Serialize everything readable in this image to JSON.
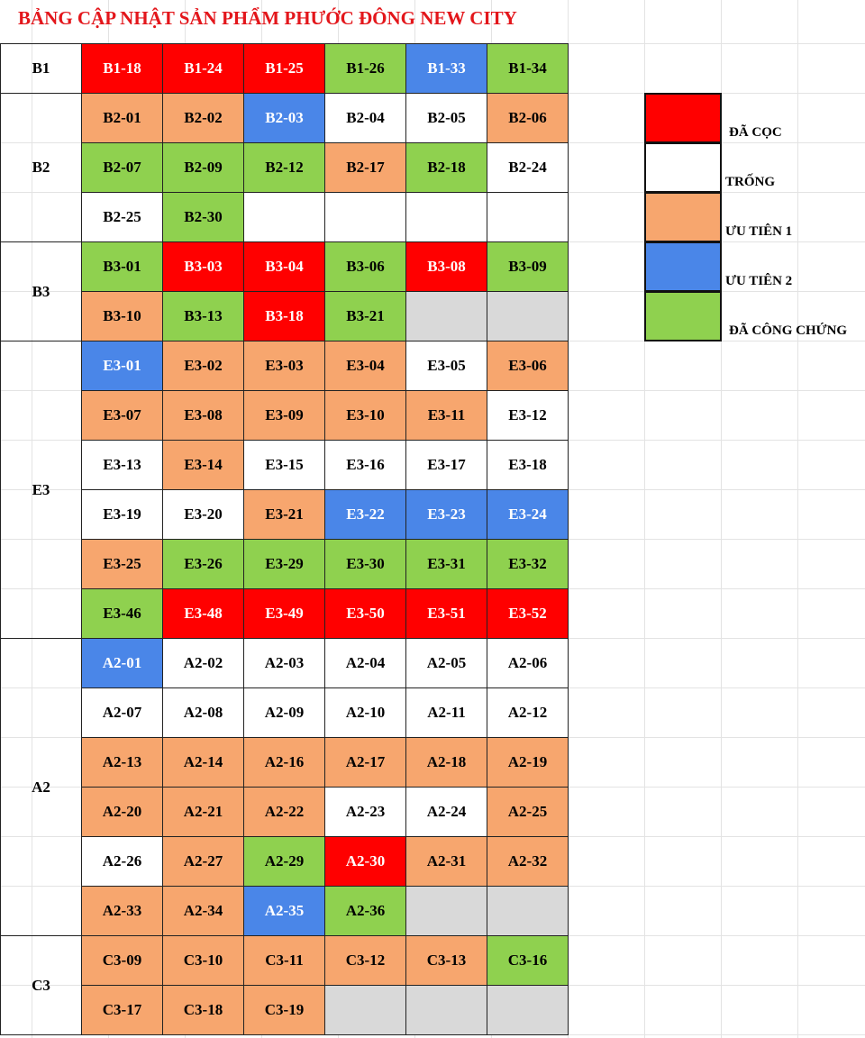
{
  "title": "BẢNG CẬP NHẬT SẢN PHẨM PHƯỚC ĐÔNG NEW CITY",
  "legend": [
    {
      "label": "ĐÃ CỌC",
      "color": "#ff0000"
    },
    {
      "label": "TRỐNG",
      "color": "#ffffff"
    },
    {
      "label": "ƯU TIÊN 1",
      "color": "#f7a66e"
    },
    {
      "label": "ƯU TIÊN 2",
      "color": "#4a86e8"
    },
    {
      "label": "ĐÃ CÔNG CHỨNG",
      "color": "#8fd14f"
    }
  ],
  "groups": [
    {
      "name": "B1",
      "rows": [
        [
          {
            "label": "B1-18",
            "color": "#ff0000"
          },
          {
            "label": "B1-24",
            "color": "#ff0000"
          },
          {
            "label": "B1-25",
            "color": "#ff0000"
          },
          {
            "label": "B1-26",
            "color": "#8fd14f"
          },
          {
            "label": "B1-33",
            "color": "#4a86e8"
          },
          {
            "label": "B1-34",
            "color": "#8fd14f"
          }
        ]
      ]
    },
    {
      "name": "B2",
      "rows": [
        [
          {
            "label": "B2-01",
            "color": "#f7a66e"
          },
          {
            "label": "B2-02",
            "color": "#f7a66e"
          },
          {
            "label": "B2-03",
            "color": "#4a86e8"
          },
          {
            "label": "B2-04",
            "color": "#ffffff"
          },
          {
            "label": "B2-05",
            "color": "#ffffff"
          },
          {
            "label": "B2-06",
            "color": "#f7a66e"
          }
        ],
        [
          {
            "label": "B2-07",
            "color": "#8fd14f"
          },
          {
            "label": "B2-09",
            "color": "#8fd14f"
          },
          {
            "label": "B2-12",
            "color": "#8fd14f"
          },
          {
            "label": "B2-17",
            "color": "#f7a66e"
          },
          {
            "label": "B2-18",
            "color": "#8fd14f"
          },
          {
            "label": "B2-24",
            "color": "#ffffff"
          }
        ],
        [
          {
            "label": "B2-25",
            "color": "#ffffff"
          },
          {
            "label": "B2-30",
            "color": "#8fd14f"
          },
          {
            "color": "#ffffff"
          },
          {
            "color": "#ffffff"
          },
          {
            "color": "#ffffff"
          },
          {
            "color": "#ffffff"
          }
        ]
      ]
    },
    {
      "name": "B3",
      "rows": [
        [
          {
            "label": "B3-01",
            "color": "#8fd14f"
          },
          {
            "label": "B3-03",
            "color": "#ff0000"
          },
          {
            "label": "B3-04",
            "color": "#ff0000"
          },
          {
            "label": "B3-06",
            "color": "#8fd14f"
          },
          {
            "label": "B3-08",
            "color": "#ff0000"
          },
          {
            "label": "B3-09",
            "color": "#8fd14f"
          }
        ],
        [
          {
            "label": "B3-10",
            "color": "#f7a66e"
          },
          {
            "label": "B3-13",
            "color": "#8fd14f"
          },
          {
            "label": "B3-18",
            "color": "#ff0000"
          },
          {
            "label": "B3-21",
            "color": "#8fd14f"
          },
          {
            "color": "#d9d9d9"
          },
          {
            "color": "#d9d9d9"
          }
        ]
      ]
    },
    {
      "name": "E3",
      "rows": [
        [
          {
            "label": "E3-01",
            "color": "#4a86e8"
          },
          {
            "label": "E3-02",
            "color": "#f7a66e"
          },
          {
            "label": "E3-03",
            "color": "#f7a66e"
          },
          {
            "label": "E3-04",
            "color": "#f7a66e"
          },
          {
            "label": "E3-05",
            "color": "#ffffff"
          },
          {
            "label": "E3-06",
            "color": "#f7a66e"
          }
        ],
        [
          {
            "label": "E3-07",
            "color": "#f7a66e"
          },
          {
            "label": "E3-08",
            "color": "#f7a66e"
          },
          {
            "label": "E3-09",
            "color": "#f7a66e"
          },
          {
            "label": "E3-10",
            "color": "#f7a66e"
          },
          {
            "label": "E3-11",
            "color": "#f7a66e"
          },
          {
            "label": "E3-12",
            "color": "#ffffff"
          }
        ],
        [
          {
            "label": "E3-13",
            "color": "#ffffff"
          },
          {
            "label": "E3-14",
            "color": "#f7a66e"
          },
          {
            "label": "E3-15",
            "color": "#ffffff"
          },
          {
            "label": "E3-16",
            "color": "#ffffff"
          },
          {
            "label": "E3-17",
            "color": "#ffffff"
          },
          {
            "label": "E3-18",
            "color": "#ffffff"
          }
        ],
        [
          {
            "label": "E3-19",
            "color": "#ffffff"
          },
          {
            "label": "E3-20",
            "color": "#ffffff"
          },
          {
            "label": "E3-21",
            "color": "#f7a66e"
          },
          {
            "label": "E3-22",
            "color": "#4a86e8"
          },
          {
            "label": "E3-23",
            "color": "#4a86e8"
          },
          {
            "label": "E3-24",
            "color": "#4a86e8"
          }
        ],
        [
          {
            "label": "E3-25",
            "color": "#f7a66e"
          },
          {
            "label": "E3-26",
            "color": "#8fd14f"
          },
          {
            "label": "E3-29",
            "color": "#8fd14f"
          },
          {
            "label": "E3-30",
            "color": "#8fd14f"
          },
          {
            "label": "E3-31",
            "color": "#8fd14f"
          },
          {
            "label": "E3-32",
            "color": "#8fd14f"
          }
        ],
        [
          {
            "label": "E3-46",
            "color": "#8fd14f"
          },
          {
            "label": "E3-48",
            "color": "#ff0000"
          },
          {
            "label": "E3-49",
            "color": "#ff0000"
          },
          {
            "label": "E3-50",
            "color": "#ff0000"
          },
          {
            "label": "E3-51",
            "color": "#ff0000"
          },
          {
            "label": "E3-52",
            "color": "#ff0000"
          }
        ]
      ]
    },
    {
      "name": "A2",
      "rows": [
        [
          {
            "label": "A2-01",
            "color": "#4a86e8"
          },
          {
            "label": "A2-02",
            "color": "#ffffff"
          },
          {
            "label": "A2-03",
            "color": "#ffffff"
          },
          {
            "label": "A2-04",
            "color": "#ffffff"
          },
          {
            "label": "A2-05",
            "color": "#ffffff"
          },
          {
            "label": "A2-06",
            "color": "#ffffff"
          }
        ],
        [
          {
            "label": "A2-07",
            "color": "#ffffff"
          },
          {
            "label": "A2-08",
            "color": "#ffffff"
          },
          {
            "label": "A2-09",
            "color": "#ffffff"
          },
          {
            "label": "A2-10",
            "color": "#ffffff"
          },
          {
            "label": "A2-11",
            "color": "#ffffff"
          },
          {
            "label": "A2-12",
            "color": "#ffffff"
          }
        ],
        [
          {
            "label": "A2-13",
            "color": "#f7a66e"
          },
          {
            "label": "A2-14",
            "color": "#f7a66e"
          },
          {
            "label": "A2-16",
            "color": "#f7a66e"
          },
          {
            "label": "A2-17",
            "color": "#f7a66e"
          },
          {
            "label": "A2-18",
            "color": "#f7a66e"
          },
          {
            "label": "A2-19",
            "color": "#f7a66e"
          }
        ],
        [
          {
            "label": "A2-20",
            "color": "#f7a66e"
          },
          {
            "label": "A2-21",
            "color": "#f7a66e"
          },
          {
            "label": "A2-22",
            "color": "#f7a66e"
          },
          {
            "label": "A2-23",
            "color": "#ffffff"
          },
          {
            "label": "A2-24",
            "color": "#ffffff"
          },
          {
            "label": "A2-25",
            "color": "#f7a66e"
          }
        ],
        [
          {
            "label": "A2-26",
            "color": "#ffffff"
          },
          {
            "label": "A2-27",
            "color": "#f7a66e"
          },
          {
            "label": "A2-29",
            "color": "#8fd14f"
          },
          {
            "label": "A2-30",
            "color": "#ff0000"
          },
          {
            "label": "A2-31",
            "color": "#f7a66e"
          },
          {
            "label": "A2-32",
            "color": "#f7a66e"
          }
        ],
        [
          {
            "label": "A2-33",
            "color": "#f7a66e"
          },
          {
            "label": "A2-34",
            "color": "#f7a66e"
          },
          {
            "label": "A2-35",
            "color": "#4a86e8"
          },
          {
            "label": "A2-36",
            "color": "#8fd14f"
          },
          {
            "color": "#d9d9d9"
          },
          {
            "color": "#d9d9d9"
          }
        ]
      ]
    },
    {
      "name": "C3",
      "rows": [
        [
          {
            "label": "C3-09",
            "color": "#f7a66e"
          },
          {
            "label": "C3-10",
            "color": "#f7a66e"
          },
          {
            "label": "C3-11",
            "color": "#f7a66e"
          },
          {
            "label": "C3-12",
            "color": "#f7a66e"
          },
          {
            "label": "C3-13",
            "color": "#f7a66e"
          },
          {
            "label": "C3-16",
            "color": "#8fd14f"
          }
        ],
        [
          {
            "label": "C3-17",
            "color": "#f7a66e"
          },
          {
            "label": "C3-18",
            "color": "#f7a66e"
          },
          {
            "label": "C3-19",
            "color": "#f7a66e"
          },
          {
            "color": "#d9d9d9"
          },
          {
            "color": "#d9d9d9"
          },
          {
            "color": "#d9d9d9"
          }
        ]
      ]
    }
  ]
}
